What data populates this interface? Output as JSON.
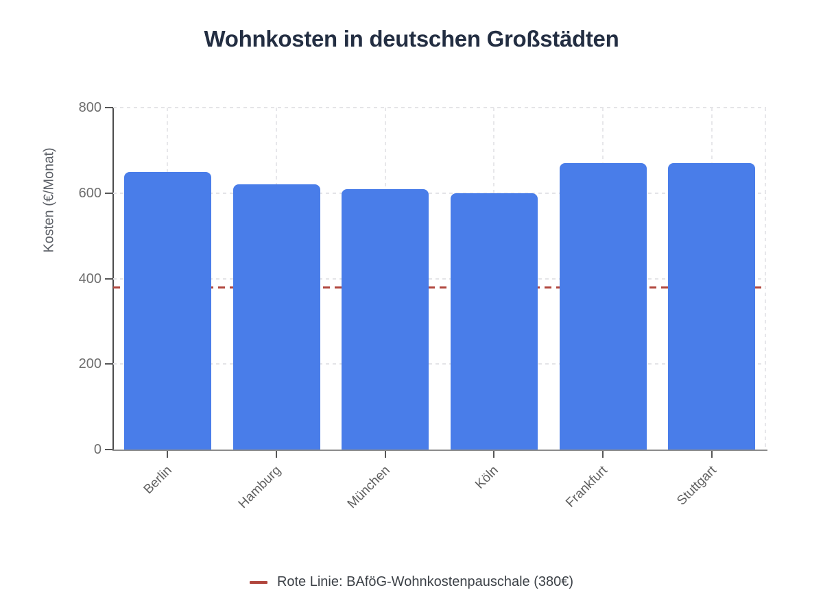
{
  "chart_data": {
    "type": "bar",
    "title": "Wohnkosten in deutschen Großstädten",
    "ylabel": "Kosten (€/Monat)",
    "xlabel": "",
    "categories": [
      "Berlin",
      "Hamburg",
      "München",
      "Köln",
      "Frankfurt",
      "Stuttgart"
    ],
    "values": [
      650,
      620,
      610,
      600,
      670,
      670
    ],
    "ylim": [
      0,
      800
    ],
    "yticks": [
      0,
      200,
      400,
      600,
      800
    ],
    "grid": true,
    "bar_color": "#497de9",
    "title_color": "#232e42",
    "reference_line": {
      "value": 380,
      "color": "#b0453c",
      "style": "dashed"
    },
    "legend": {
      "position": "bottom",
      "entries": [
        {
          "label": "Rote Linie: BAföG-Wohnkostenpauschale (380€)",
          "swatch_color": "#b0453c"
        }
      ]
    }
  }
}
